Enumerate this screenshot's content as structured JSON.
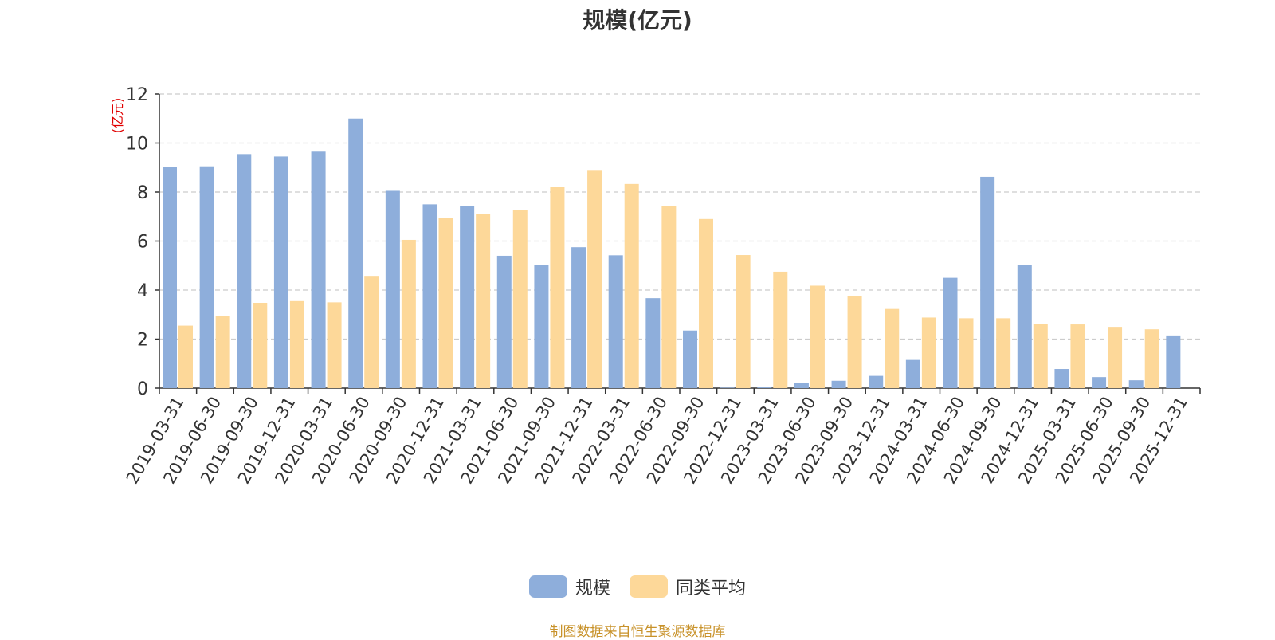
{
  "chart_data": {
    "type": "bar",
    "title": "规模(亿元)",
    "ylabel": "(亿元)",
    "ylim": [
      0,
      12
    ],
    "yticks": [
      0,
      2,
      4,
      6,
      8,
      10,
      12
    ],
    "grid": true,
    "legend_position": "bottom-center",
    "categories": [
      "2019-03-31",
      "2019-06-30",
      "2019-09-30",
      "2019-12-31",
      "2020-03-31",
      "2020-06-30",
      "2020-09-30",
      "2020-12-31",
      "2021-03-31",
      "2021-06-30",
      "2021-09-30",
      "2021-12-31",
      "2022-03-31",
      "2022-06-30",
      "2022-09-30",
      "2022-12-31",
      "2023-03-31",
      "2023-06-30",
      "2023-09-30",
      "2023-12-31",
      "2024-03-31",
      "2024-06-30",
      "2024-09-30",
      "2024-12-31",
      "2025-03-31",
      "2025-06-30",
      "2025-09-30",
      "2025-12-31"
    ],
    "series": [
      {
        "name": "规模",
        "color": "#8eaedb",
        "values": [
          9.03,
          9.05,
          9.55,
          9.45,
          9.65,
          11.0,
          8.05,
          7.5,
          7.42,
          5.4,
          5.02,
          5.75,
          5.42,
          3.67,
          2.35,
          0.02,
          0.03,
          0.2,
          0.3,
          0.5,
          1.15,
          4.5,
          8.62,
          5.02,
          0.78,
          0.45,
          0.32,
          2.15
        ]
      },
      {
        "name": "同类平均",
        "color": "#fdd899",
        "values": [
          2.55,
          2.93,
          3.48,
          3.55,
          3.5,
          4.58,
          6.05,
          6.95,
          7.1,
          7.28,
          8.2,
          8.9,
          8.33,
          7.42,
          6.9,
          5.43,
          4.75,
          4.18,
          3.77,
          3.23,
          2.88,
          2.85,
          2.85,
          2.63,
          2.6,
          2.5,
          2.4,
          null
        ]
      }
    ]
  },
  "legend": {
    "item1": "规模",
    "item2": "同类平均"
  },
  "source_text": "制图数据来自恒生聚源数据库"
}
